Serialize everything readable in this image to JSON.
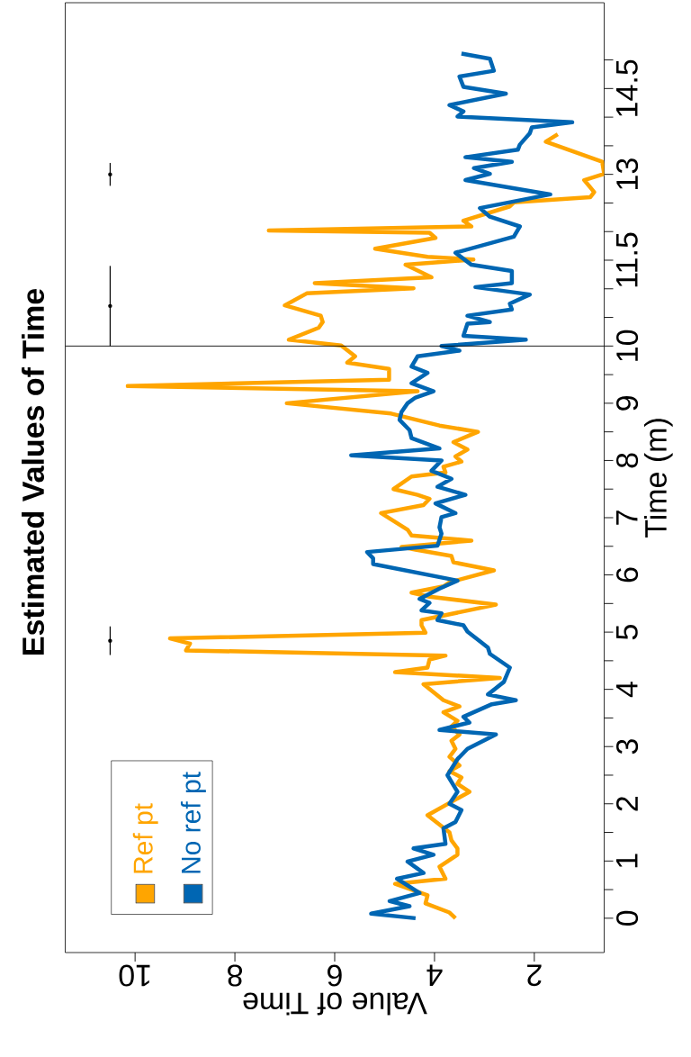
{
  "chart_data": {
    "type": "line",
    "title": "Estimated Values of Time",
    "xlabel": "Value of Time",
    "ylabel": "Time (m)",
    "xlim": [
      11.4,
      0.6
    ],
    "ylim": [
      -0.6,
      16.0
    ],
    "xticks": [
      2,
      4,
      6,
      8,
      10
    ],
    "yticks": [
      0,
      {
        "value": 0.5,
        "label": null
      },
      1,
      {
        "value": 1.5,
        "label": null
      },
      2,
      {
        "value": 2.5,
        "label": null
      },
      3,
      {
        "value": 3.5,
        "label": null
      },
      4,
      {
        "value": 4.5,
        "label": null
      },
      5,
      {
        "value": 5.5,
        "label": null
      },
      6,
      {
        "value": 6.5,
        "label": null
      },
      7,
      {
        "value": 7.5,
        "label": null
      },
      8,
      {
        "value": 8.5,
        "label": null
      },
      9,
      {
        "value": 9.5,
        "label": null
      },
      10,
      {
        "value": 10.5,
        "label": null
      },
      {
        "value": 11,
        "label": null
      },
      11.5,
      {
        "value": 12,
        "label": null
      },
      {
        "value": 12.5,
        "label": null
      },
      13,
      {
        "value": 13.5,
        "label": null
      },
      {
        "value": 14,
        "label": null
      },
      14.5,
      {
        "value": 15,
        "label": null
      }
    ],
    "legend": "bottom left",
    "grid": false,
    "marker": "none",
    "line_style": "solid",
    "ref_lines": [
      {
        "axis": "y",
        "value": 10,
        "color": "#000000"
      }
    ],
    "series": [
      {
        "name": "Ref pt",
        "color": "#ffa500",
        "values": [
          0,
          0.1,
          0.26,
          0.4,
          0.6,
          0.69,
          0.9,
          1.11,
          1.22,
          1.36,
          1.5,
          1.8,
          2.21,
          2.35,
          2.46,
          2.57,
          2.67,
          2.82,
          2.96,
          3.1,
          3.21,
          3.35,
          3.45,
          3.6,
          3.7,
          3.81,
          4.09,
          4.2,
          4.3,
          4.38,
          4.52,
          4.59,
          4.68,
          4.8,
          4.89,
          4.99,
          5.12,
          5.21,
          5.48,
          5.62,
          5.69,
          5.8,
          5.87,
          6.08,
          6.22,
          6.33,
          6.44,
          6.49,
          6.6,
          6.69,
          6.79,
          7.08,
          7.22,
          7.33,
          7.4,
          7.5,
          7.72,
          7.79,
          7.89,
          7.98,
          8.07,
          8.19,
          8.32,
          8.5,
          8.61,
          8.82,
          9.0,
          9.21,
          9.3,
          9.41,
          9.6,
          9.71,
          9.82,
          10.01,
          10.11,
          10.32,
          10.42,
          10.53,
          10.71,
          10.92,
          11.01,
          11.1,
          11.2,
          11.42,
          11.51,
          11.56,
          11.7,
          11.89,
          11.98,
          12.02,
          12.09,
          12.19,
          12.44,
          12.51,
          12.6,
          12.69,
          12.9,
          13.01,
          13.22,
          13.57,
          13.7
        ],
        "x": [
          3.58,
          3.7,
          4.18,
          4.14,
          4.79,
          3.78,
          3.9,
          3.54,
          3.54,
          3.66,
          3.7,
          4.14,
          3.3,
          3.54,
          3.46,
          3.7,
          3.5,
          3.7,
          3.58,
          3.66,
          3.5,
          3.66,
          3.54,
          3.82,
          3.5,
          3.82,
          4.22,
          2.69,
          4.79,
          4.14,
          4.1,
          3.78,
          8.98,
          8.9,
          9.3,
          4.18,
          4.26,
          4.26,
          2.77,
          4.1,
          4.46,
          3.82,
          3.7,
          2.81,
          3.62,
          3.66,
          4.38,
          4.66,
          3.26,
          4.46,
          4.54,
          5.07,
          4.22,
          4.1,
          4.34,
          4.82,
          4.46,
          3.78,
          3.82,
          3.46,
          3.58,
          3.34,
          3.62,
          3.13,
          3.9,
          4.87,
          6.96,
          4.34,
          10.15,
          4.91,
          4.91,
          5.75,
          5.59,
          5.87,
          6.92,
          6.32,
          6.24,
          6.28,
          7.0,
          6.56,
          4.42,
          6.4,
          4.06,
          4.58,
          3.22,
          4.14,
          5.19,
          3.98,
          4.1,
          7.32,
          3.26,
          3.42,
          2.49,
          2.41,
          0.88,
          0.8,
          1.0,
          0.6,
          0.64,
          1.77,
          1.53
        ]
      },
      {
        "name": "No ref pt",
        "color": "#0066b3",
        "values": [
          0,
          0.08,
          0.21,
          0.3,
          0.44,
          0.69,
          0.79,
          0.99,
          1.11,
          1.22,
          1.3,
          1.57,
          1.68,
          1.89,
          2.0,
          2.21,
          2.5,
          2.78,
          2.96,
          3.21,
          3.29,
          3.42,
          3.52,
          3.74,
          3.81,
          3.91,
          4.13,
          4.38,
          4.62,
          4.73,
          4.84,
          5.01,
          5.12,
          5.21,
          5.33,
          5.38,
          5.51,
          5.58,
          5.76,
          5.9,
          6.19,
          6.29,
          6.4,
          6.51,
          6.72,
          6.83,
          7.01,
          7.08,
          7.25,
          7.4,
          7.54,
          7.68,
          7.82,
          8.0,
          8.09,
          8.21,
          8.39,
          8.53,
          8.71,
          8.85,
          9.0,
          9.1,
          9.21,
          9.35,
          9.53,
          9.64,
          9.82,
          9.92,
          10.0,
          10.11,
          10.18,
          10.39,
          10.42,
          10.53,
          10.64,
          10.74,
          10.9,
          11.03,
          11.1,
          11.31,
          11.42,
          11.63,
          11.91,
          12.09,
          12.26,
          12.41,
          12.65,
          12.9,
          13.01,
          13.11,
          13.22,
          13.3,
          13.43,
          13.52,
          13.72,
          13.82,
          13.91,
          14.01,
          14.1,
          14.21,
          14.41,
          14.53,
          14.71,
          14.81,
          15.02,
          15.11
        ],
        "x": [
          4.38,
          5.27,
          4.5,
          4.9,
          4.3,
          4.75,
          4.22,
          4.54,
          4.02,
          4.42,
          3.78,
          3.82,
          3.58,
          3.46,
          3.7,
          3.54,
          3.74,
          3.54,
          3.34,
          2.77,
          3.9,
          3.3,
          3.42,
          2.85,
          2.37,
          2.93,
          2.61,
          2.49,
          2.89,
          2.93,
          3.09,
          3.34,
          3.42,
          3.94,
          3.86,
          4.26,
          4.1,
          4.3,
          3.9,
          3.54,
          5.23,
          5.23,
          5.35,
          3.94,
          3.86,
          3.9,
          3.86,
          3.58,
          3.98,
          3.38,
          3.94,
          3.66,
          4.06,
          3.86,
          5.67,
          3.9,
          4.46,
          4.5,
          4.7,
          4.66,
          4.54,
          4.38,
          4.02,
          4.46,
          4.14,
          4.46,
          4.34,
          3.5,
          3.86,
          2.17,
          3.42,
          3.34,
          2.89,
          3.34,
          2.45,
          2.49,
          2.09,
          3.18,
          2.45,
          2.45,
          3.26,
          3.58,
          2.41,
          2.29,
          2.89,
          3.09,
          1.68,
          3.38,
          2.89,
          3.21,
          2.45,
          3.38,
          2.33,
          2.29,
          2.09,
          2.05,
          1.24,
          3.54,
          3.42,
          3.7,
          2.57,
          3.42,
          3.5,
          2.81,
          2.89,
          3.46
        ]
      },
      {
        "type": "scatter",
        "marker": "circle",
        "color": "#000000",
        "x": [
          10.5,
          10.5,
          10.5
        ],
        "values": [
          4.85,
          10.7,
          13.0
        ],
        "errors": [
          0.25,
          0.7,
          0.2
        ]
      }
    ]
  }
}
